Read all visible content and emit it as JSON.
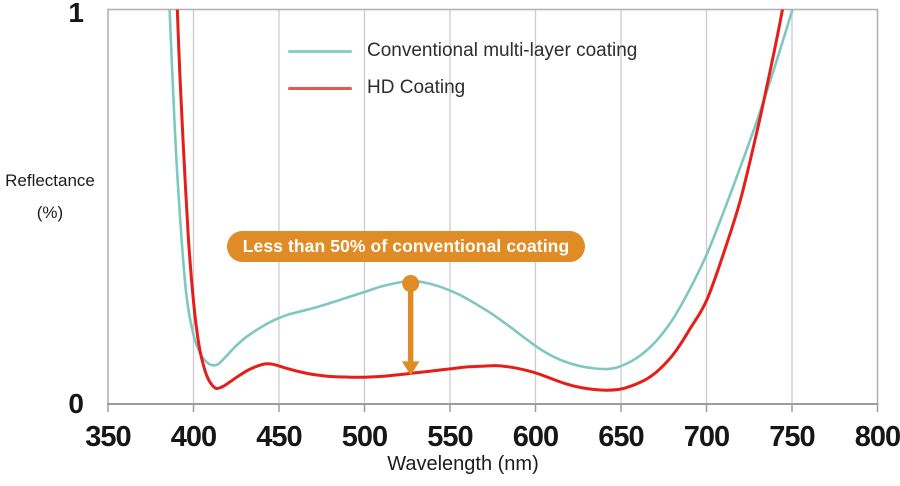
{
  "figure": {
    "y_axis": {
      "label_line1": "Reflectance",
      "label_line2": "(%)",
      "top_tick": "1",
      "bottom_tick": "0"
    },
    "x_axis": {
      "label": "Wavelength (nm)"
    },
    "legend": [
      {
        "label": "Conventional multi-layer coating",
        "color": "#8acdc5"
      },
      {
        "label": "HD Coating",
        "color": "#e8564e"
      }
    ],
    "annotation": {
      "label": "Less than 50% of conventional coating",
      "color": "#df8b26",
      "text_color": "#ffffff"
    },
    "colors": {
      "conventional_curve": "#7fc8c0",
      "hd_curve": "#e51e19",
      "arrow_orange": "#df8b26",
      "gridline": "#cbcbcb",
      "frame": "#b3b3b3",
      "axis": "#9c9c9c"
    }
  },
  "chart_data": {
    "type": "line",
    "title": "",
    "xlabel": "Wavelength (nm)",
    "ylabel": "Reflectance (%)",
    "xlim": [
      350,
      800
    ],
    "ylim": [
      0,
      1
    ],
    "x_ticks": [
      350,
      400,
      450,
      500,
      550,
      600,
      650,
      700,
      750,
      800
    ],
    "y_ticks": [
      0,
      1
    ],
    "gridlines_x_nm": [
      400,
      450,
      500,
      550,
      600,
      650,
      700,
      750
    ],
    "grid_horizontal": false,
    "legend_position": "top-left-inside",
    "series": [
      {
        "name": "Conventional multi-layer coating",
        "color": "#7fc8c0",
        "width": 2.6,
        "points": [
          [
            386,
            1.0
          ],
          [
            388,
            0.8
          ],
          [
            390,
            0.62
          ],
          [
            393,
            0.42
          ],
          [
            396,
            0.27
          ],
          [
            400,
            0.175
          ],
          [
            404,
            0.128
          ],
          [
            408,
            0.105
          ],
          [
            411.5,
            0.098
          ],
          [
            415,
            0.103
          ],
          [
            420,
            0.125
          ],
          [
            425,
            0.148
          ],
          [
            430,
            0.167
          ],
          [
            435,
            0.182
          ],
          [
            440,
            0.196
          ],
          [
            445,
            0.208
          ],
          [
            450,
            0.218
          ],
          [
            455,
            0.226
          ],
          [
            460,
            0.232
          ],
          [
            470,
            0.243
          ],
          [
            480,
            0.256
          ],
          [
            490,
            0.27
          ],
          [
            500,
            0.284
          ],
          [
            510,
            0.298
          ],
          [
            520,
            0.308
          ],
          [
            527,
            0.312
          ],
          [
            535,
            0.308
          ],
          [
            545,
            0.296
          ],
          [
            555,
            0.278
          ],
          [
            565,
            0.254
          ],
          [
            575,
            0.227
          ],
          [
            585,
            0.196
          ],
          [
            595,
            0.163
          ],
          [
            605,
            0.133
          ],
          [
            615,
            0.111
          ],
          [
            625,
            0.097
          ],
          [
            635,
            0.09
          ],
          [
            643,
            0.089
          ],
          [
            650,
            0.096
          ],
          [
            660,
            0.119
          ],
          [
            670,
            0.157
          ],
          [
            680,
            0.213
          ],
          [
            690,
            0.289
          ],
          [
            700,
            0.378
          ],
          [
            710,
            0.487
          ],
          [
            720,
            0.603
          ],
          [
            730,
            0.724
          ],
          [
            740,
            0.856
          ],
          [
            751,
            1.01
          ]
        ]
      },
      {
        "name": "HD Coating",
        "color": "#e51e19",
        "width": 3,
        "points": [
          [
            390.5,
            1.0
          ],
          [
            392,
            0.84
          ],
          [
            394,
            0.66
          ],
          [
            397,
            0.42
          ],
          [
            400,
            0.26
          ],
          [
            403,
            0.155
          ],
          [
            406,
            0.095
          ],
          [
            409,
            0.06
          ],
          [
            413,
            0.04
          ],
          [
            417,
            0.044
          ],
          [
            421,
            0.055
          ],
          [
            426,
            0.07
          ],
          [
            432,
            0.086
          ],
          [
            438,
            0.097
          ],
          [
            443,
            0.102
          ],
          [
            448,
            0.099
          ],
          [
            454,
            0.091
          ],
          [
            460,
            0.084
          ],
          [
            467,
            0.077
          ],
          [
            475,
            0.072
          ],
          [
            483,
            0.069
          ],
          [
            492,
            0.068
          ],
          [
            500,
            0.068
          ],
          [
            510,
            0.07
          ],
          [
            520,
            0.074
          ],
          [
            530,
            0.079
          ],
          [
            540,
            0.084
          ],
          [
            550,
            0.089
          ],
          [
            560,
            0.094
          ],
          [
            570,
            0.096
          ],
          [
            578,
            0.097
          ],
          [
            586,
            0.093
          ],
          [
            594,
            0.086
          ],
          [
            602,
            0.076
          ],
          [
            610,
            0.063
          ],
          [
            618,
            0.051
          ],
          [
            626,
            0.042
          ],
          [
            634,
            0.037
          ],
          [
            642,
            0.035
          ],
          [
            650,
            0.038
          ],
          [
            658,
            0.049
          ],
          [
            666,
            0.066
          ],
          [
            674,
            0.094
          ],
          [
            682,
            0.134
          ],
          [
            690,
            0.188
          ],
          [
            700,
            0.262
          ],
          [
            710,
            0.382
          ],
          [
            720,
            0.52
          ],
          [
            730,
            0.7
          ],
          [
            736,
            0.82
          ],
          [
            742,
            0.945
          ],
          [
            747,
            1.06
          ]
        ]
      }
    ],
    "annotation_arrow": {
      "nm": 527,
      "from_value": 0.308,
      "to_value": 0.075,
      "color": "#df8b26"
    }
  }
}
